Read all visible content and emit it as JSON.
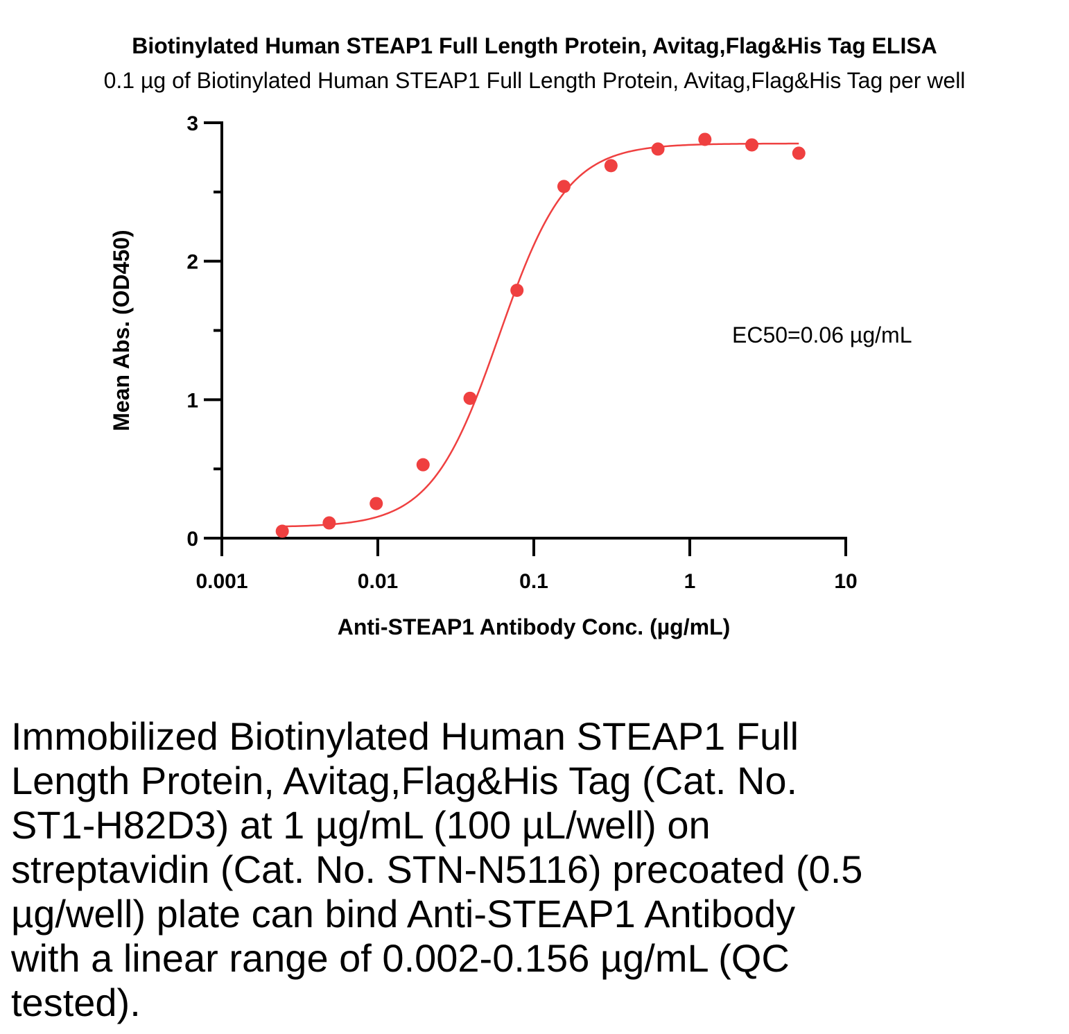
{
  "chart_data": {
    "type": "scatter",
    "title": "Biotinylated Human STEAP1 Full Length Protein, Avitag,Flag&His Tag ELISA",
    "subtitle": "0.1 µg of Biotinylated Human STEAP1 Full Length Protein, Avitag,Flag&His Tag per well",
    "xlabel": "Anti-STEAP1 Antibody Conc. (µg/mL)",
    "ylabel": "Mean Abs. (OD450)",
    "x_scale": "log",
    "xlim": [
      0.001,
      10
    ],
    "ylim": [
      0,
      3
    ],
    "x_ticks": [
      0.001,
      0.01,
      0.1,
      1,
      10
    ],
    "x_tick_labels": [
      "0.001",
      "0.01",
      "0.1",
      "1",
      "10"
    ],
    "y_ticks": [
      0,
      1,
      2,
      3
    ],
    "y_tick_labels": [
      "0",
      "1",
      "2",
      "3"
    ],
    "grid": false,
    "color": "#ef4040",
    "series": [
      {
        "x": [
          0.00244,
          0.00488,
          0.00977,
          0.0195,
          0.039,
          0.078,
          0.156,
          0.3125,
          0.625,
          1.25,
          2.5,
          5
        ],
        "y": [
          0.05,
          0.11,
          0.25,
          0.53,
          1.01,
          1.79,
          2.54,
          2.69,
          2.81,
          2.88,
          2.84,
          2.78
        ]
      }
    ],
    "fit": {
      "model": "4PL",
      "bottom": 0.08,
      "top": 2.85,
      "ec50": 0.06,
      "hill": 2.0
    },
    "annotation": "EC50=0.06 µg/mL"
  },
  "caption": "Immobilized Biotinylated Human STEAP1 Full Length Protein, Avitag,Flag&His Tag (Cat. No. ST1-H82D3) at 1 µg/mL (100 µL/well) on streptavidin (Cat. No. STN-N5116) precoated (0.5 µg/well) plate can bind Anti-STEAP1 Antibody with a linear range of 0.002-0.156 µg/mL (QC tested)."
}
